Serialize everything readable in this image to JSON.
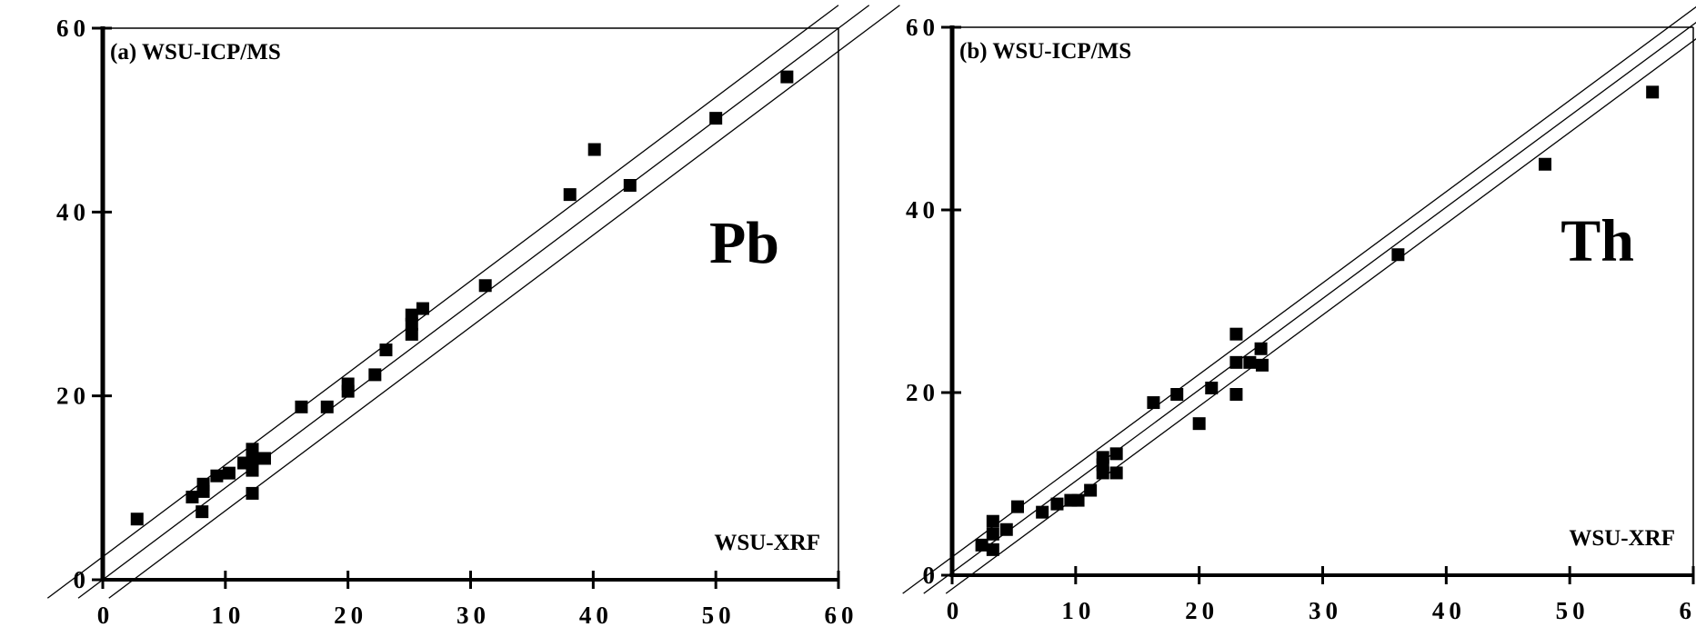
{
  "chart_data": [
    {
      "type": "scatter",
      "panel_label": "(a)",
      "ylabel": "WSU-ICP/MS",
      "xlabel": "WSU-XRF",
      "annotation": "Pb",
      "xlim": [
        0,
        60
      ],
      "ylim": [
        0,
        60
      ],
      "xticks": [
        "0",
        "10",
        "20",
        "30",
        "40",
        "50",
        "60"
      ],
      "yticks": [
        "0",
        "20",
        "40",
        "60"
      ],
      "reference_lines": [
        {
          "intercept": 2.5,
          "slope": 1
        },
        {
          "intercept": 0,
          "slope": 1
        },
        {
          "intercept": -2.5,
          "slope": 1
        }
      ],
      "points": [
        [
          2.8,
          6.6
        ],
        [
          7.3,
          9.0
        ],
        [
          8.1,
          7.4
        ],
        [
          8.2,
          10.4
        ],
        [
          8.2,
          9.6
        ],
        [
          9.3,
          11.3
        ],
        [
          10.3,
          11.6
        ],
        [
          11.5,
          12.7
        ],
        [
          12.2,
          14.2
        ],
        [
          12.2,
          13.1
        ],
        [
          12.2,
          11.9
        ],
        [
          12.2,
          9.4
        ],
        [
          13.2,
          13.2
        ],
        [
          16.2,
          18.8
        ],
        [
          18.3,
          18.8
        ],
        [
          20,
          21.3
        ],
        [
          20,
          20.5
        ],
        [
          22.2,
          22.3
        ],
        [
          23.1,
          25
        ],
        [
          25.2,
          28.8
        ],
        [
          25.2,
          27.8
        ],
        [
          25.2,
          26.7
        ],
        [
          26.1,
          29.5
        ],
        [
          31.2,
          32
        ],
        [
          38.1,
          41.9
        ],
        [
          40.1,
          46.8
        ],
        [
          43,
          42.9
        ],
        [
          50,
          50.2
        ],
        [
          55.8,
          54.7
        ]
      ]
    },
    {
      "type": "scatter",
      "panel_label": "(b)",
      "ylabel": "WSU-ICP/MS",
      "xlabel": "WSU-XRF",
      "annotation": "Th",
      "xlim": [
        0,
        60
      ],
      "ylim": [
        0,
        60
      ],
      "xticks": [
        "0",
        "10",
        "20",
        "30",
        "40",
        "50",
        "60"
      ],
      "yticks": [
        "0",
        "20",
        "40",
        "60"
      ],
      "reference_lines": [
        {
          "intercept": 2,
          "slope": 1
        },
        {
          "intercept": 0.3,
          "slope": 1
        },
        {
          "intercept": -1.5,
          "slope": 1
        }
      ],
      "points": [
        [
          2.4,
          3.3
        ],
        [
          3.3,
          5.9
        ],
        [
          3.3,
          4.5
        ],
        [
          3.3,
          2.8
        ],
        [
          4.4,
          5.0
        ],
        [
          5.3,
          7.5
        ],
        [
          7.3,
          6.9
        ],
        [
          8.5,
          7.8
        ],
        [
          9.6,
          8.2
        ],
        [
          10.2,
          8.2
        ],
        [
          11.2,
          9.3
        ],
        [
          12.2,
          12.9
        ],
        [
          12.2,
          12.1
        ],
        [
          12.2,
          11.2
        ],
        [
          13.3,
          13.3
        ],
        [
          13.3,
          11.2
        ],
        [
          16.3,
          18.9
        ],
        [
          18.2,
          19.8
        ],
        [
          20,
          16.6
        ],
        [
          21,
          20.5
        ],
        [
          23,
          26.4
        ],
        [
          23,
          23.3
        ],
        [
          23,
          19.8
        ],
        [
          24.1,
          23.3
        ],
        [
          25.1,
          23
        ],
        [
          25,
          24.8
        ],
        [
          36.1,
          35.1
        ],
        [
          48,
          45
        ],
        [
          56.7,
          52.9
        ]
      ]
    }
  ]
}
